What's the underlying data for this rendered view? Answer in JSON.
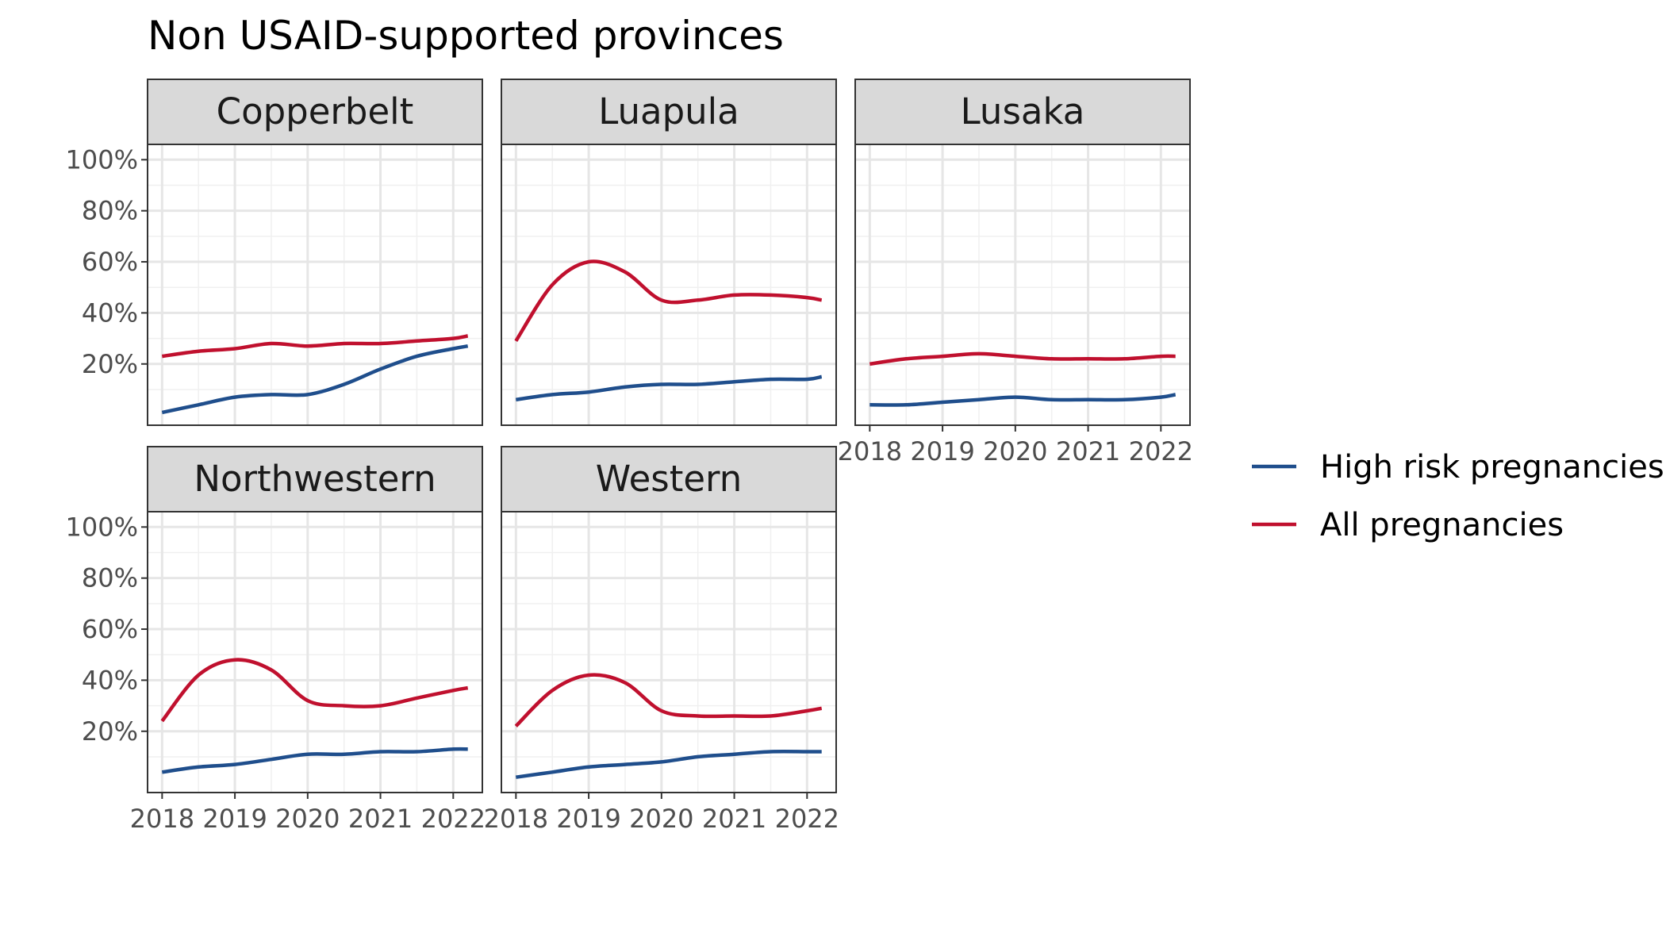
{
  "chart_data": {
    "type": "line",
    "title": "Non USAID-supported provinces",
    "xlabel": "",
    "ylabel": "",
    "x_ticks": [
      "2018",
      "2019",
      "2020",
      "2021",
      "2022"
    ],
    "y_ticks": [
      "20%",
      "40%",
      "60%",
      "80%",
      "100%"
    ],
    "xlim": [
      2017.8,
      2022.4
    ],
    "ylim": [
      -4,
      106
    ],
    "legend_position": "right",
    "series_meta": [
      {
        "name": "High risk pregnancies",
        "color": "#1f4e8c"
      },
      {
        "name": "All pregnancies",
        "color": "#c0102e"
      }
    ],
    "x": [
      2018.0,
      2018.5,
      2019.0,
      2019.5,
      2020.0,
      2020.5,
      2021.0,
      2021.5,
      2022.0,
      2022.2
    ],
    "panels": [
      {
        "name": "Copperbelt",
        "series": [
          {
            "name": "High risk pregnancies",
            "values": [
              1,
              4,
              7,
              8,
              8,
              12,
              18,
              23,
              26,
              27
            ]
          },
          {
            "name": "All pregnancies",
            "values": [
              23,
              25,
              26,
              28,
              27,
              28,
              28,
              29,
              30,
              31
            ]
          }
        ]
      },
      {
        "name": "Luapula",
        "series": [
          {
            "name": "High risk pregnancies",
            "values": [
              6,
              8,
              9,
              11,
              12,
              12,
              13,
              14,
              14,
              15
            ]
          },
          {
            "name": "All pregnancies",
            "values": [
              29,
              51,
              60,
              56,
              45,
              45,
              47,
              47,
              46,
              45
            ]
          }
        ]
      },
      {
        "name": "Lusaka",
        "series": [
          {
            "name": "High risk pregnancies",
            "values": [
              4,
              4,
              5,
              6,
              7,
              6,
              6,
              6,
              7,
              8
            ]
          },
          {
            "name": "All pregnancies",
            "values": [
              20,
              22,
              23,
              24,
              23,
              22,
              22,
              22,
              23,
              23
            ]
          }
        ]
      },
      {
        "name": "Northwestern",
        "series": [
          {
            "name": "High risk pregnancies",
            "values": [
              4,
              6,
              7,
              9,
              11,
              11,
              12,
              12,
              13,
              13
            ]
          },
          {
            "name": "All pregnancies",
            "values": [
              24,
              42,
              48,
              44,
              32,
              30,
              30,
              33,
              36,
              37
            ]
          }
        ]
      },
      {
        "name": "Western",
        "series": [
          {
            "name": "High risk pregnancies",
            "values": [
              2,
              4,
              6,
              7,
              8,
              10,
              11,
              12,
              12,
              12
            ]
          },
          {
            "name": "All pregnancies",
            "values": [
              22,
              36,
              42,
              39,
              28,
              26,
              26,
              26,
              28,
              29
            ]
          }
        ]
      }
    ]
  }
}
